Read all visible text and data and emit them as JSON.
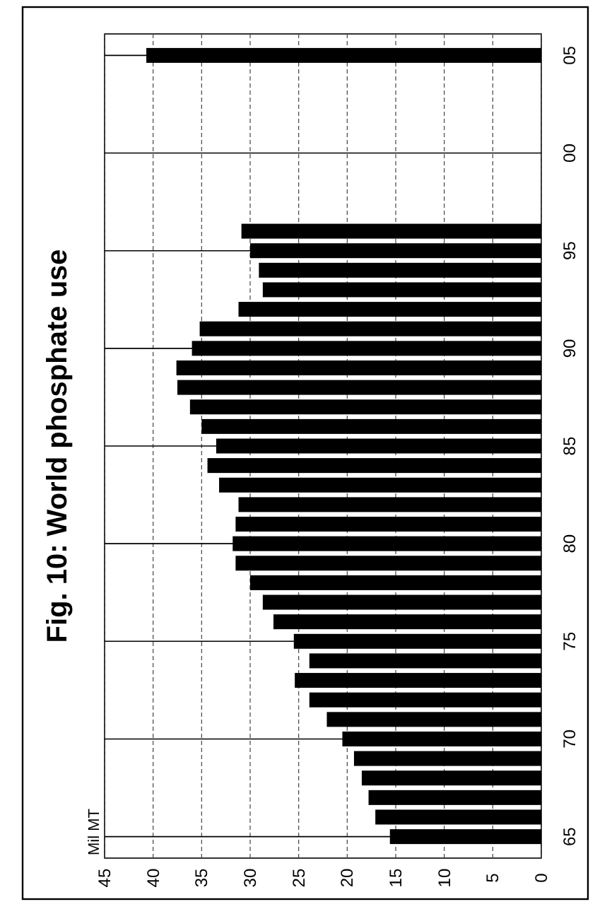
{
  "chart_data": {
    "type": "bar",
    "orientation": "horizontal",
    "title": "Fig. 10: World phosphate use",
    "ylabel": "Mil MT",
    "x": [
      1965,
      1966,
      1967,
      1968,
      1969,
      1970,
      1971,
      1972,
      1973,
      1974,
      1975,
      1976,
      1977,
      1978,
      1979,
      1980,
      1981,
      1982,
      1983,
      1984,
      1985,
      1986,
      1987,
      1988,
      1989,
      1990,
      1991,
      1992,
      1993,
      1994,
      1995,
      1996,
      2005
    ],
    "values": [
      15.6,
      17.1,
      17.8,
      18.5,
      19.3,
      20.5,
      22.1,
      23.9,
      25.4,
      23.9,
      25.5,
      27.6,
      28.7,
      30.0,
      31.5,
      31.8,
      31.5,
      31.2,
      33.2,
      34.4,
      33.5,
      35.0,
      36.2,
      37.5,
      37.6,
      36.0,
      35.2,
      31.2,
      28.7,
      29.1,
      30.0,
      30.9,
      40.7
    ],
    "color": "#000000",
    "ylim": [
      1963.9,
      2006.1
    ],
    "yticks": [
      {
        "value": 1965,
        "label": "65"
      },
      {
        "value": 1970,
        "label": "70"
      },
      {
        "value": 1975,
        "label": "75"
      },
      {
        "value": 1980,
        "label": "80"
      },
      {
        "value": 1985,
        "label": "85"
      },
      {
        "value": 1990,
        "label": "90"
      },
      {
        "value": 1995,
        "label": "95"
      },
      {
        "value": 2000,
        "label": "00"
      },
      {
        "value": 2005,
        "label": "05"
      }
    ],
    "xlim": [
      45,
      0
    ],
    "xticks": [
      0,
      5,
      10,
      15,
      20,
      25,
      30,
      35,
      40,
      45
    ],
    "grid": true
  }
}
